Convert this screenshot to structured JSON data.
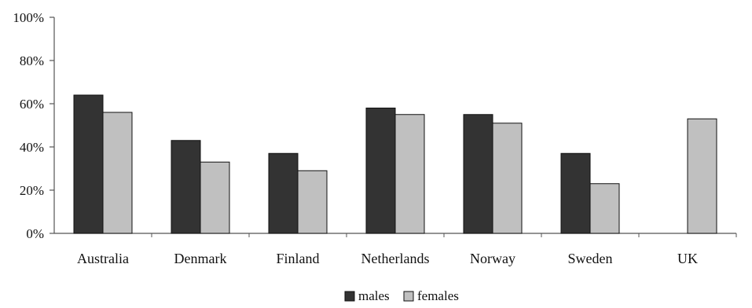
{
  "chart_data": {
    "type": "bar",
    "categories": [
      "Australia",
      "Denmark",
      "Finland",
      "Netherlands",
      "Norway",
      "Sweden",
      "UK"
    ],
    "series": [
      {
        "name": "males",
        "values": [
          64,
          43,
          37,
          58,
          55,
          37,
          null
        ],
        "color": "#333333"
      },
      {
        "name": "females",
        "values": [
          56,
          33,
          29,
          55,
          51,
          23,
          53
        ],
        "color": "#c0c0c0"
      }
    ],
    "ylim": [
      0,
      100
    ],
    "yticks": [
      "0%",
      "20%",
      "40%",
      "60%",
      "80%",
      "100%"
    ],
    "ytick_values": [
      0,
      20,
      40,
      60,
      80,
      100
    ],
    "title": "",
    "xlabel": "",
    "ylabel": "",
    "grid": false,
    "legend_position": "bottom-center"
  }
}
